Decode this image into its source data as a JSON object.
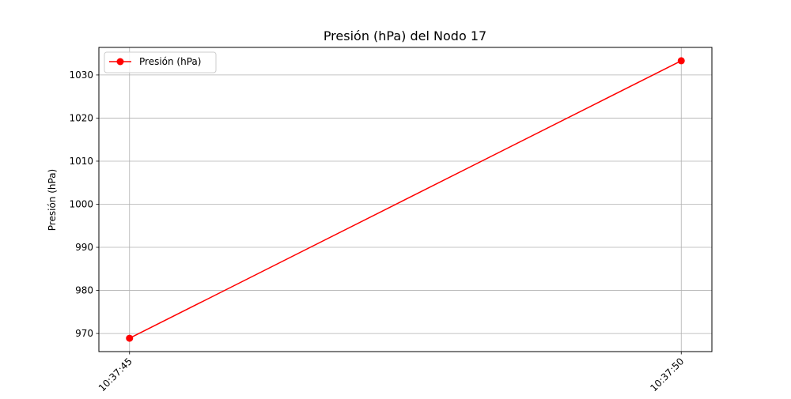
{
  "chart_data": {
    "type": "line",
    "title": "Presión (hPa) del Nodo 17",
    "xlabel": "",
    "ylabel": "Presión (hPa)",
    "x": [
      "10:37:45",
      "10:37:50"
    ],
    "series": [
      {
        "name": "Presión (hPa)",
        "values": [
          968.9,
          1033.3
        ],
        "color": "#ff0000",
        "marker": "circle"
      }
    ],
    "ylim": [
      965.8,
      1036.4
    ],
    "yticks": [
      970,
      980,
      990,
      1000,
      1010,
      1020,
      1030
    ],
    "grid": true,
    "legend_position": "top-left",
    "xtick_rotation": 45
  }
}
